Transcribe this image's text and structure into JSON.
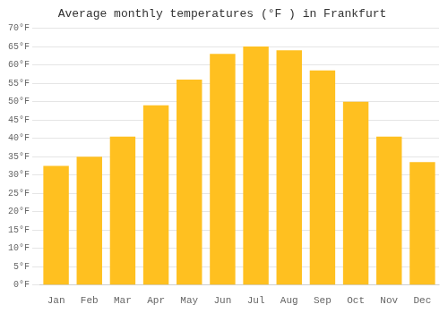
{
  "chart_data": {
    "type": "bar",
    "title": "Average monthly temperatures (°F ) in Frankfurt",
    "categories": [
      "Jan",
      "Feb",
      "Mar",
      "Apr",
      "May",
      "Jun",
      "Jul",
      "Aug",
      "Sep",
      "Oct",
      "Nov",
      "Dec"
    ],
    "values": [
      32.5,
      35.0,
      40.5,
      49.0,
      56.0,
      63.0,
      65.0,
      64.0,
      58.5,
      50.0,
      40.5,
      33.5
    ],
    "color": "#FFC020",
    "ylim": [
      0,
      70
    ],
    "yticks": [
      {
        "value": 0,
        "label": "0°F"
      },
      {
        "value": 5,
        "label": "5°F"
      },
      {
        "value": 10,
        "label": "10°F"
      },
      {
        "value": 15,
        "label": "15°F"
      },
      {
        "value": 20,
        "label": "20°F"
      },
      {
        "value": 25,
        "label": "25°F"
      },
      {
        "value": 30,
        "label": "30°F"
      },
      {
        "value": 35,
        "label": "35°F"
      },
      {
        "value": 40,
        "label": "40°F"
      },
      {
        "value": 45,
        "label": "45°F"
      },
      {
        "value": 50,
        "label": "50°F"
      },
      {
        "value": 55,
        "label": "55°F"
      },
      {
        "value": 60,
        "label": "60°F"
      },
      {
        "value": 65,
        "label": "65°F"
      },
      {
        "value": 70,
        "label": "70°F"
      }
    ],
    "grid": true
  }
}
